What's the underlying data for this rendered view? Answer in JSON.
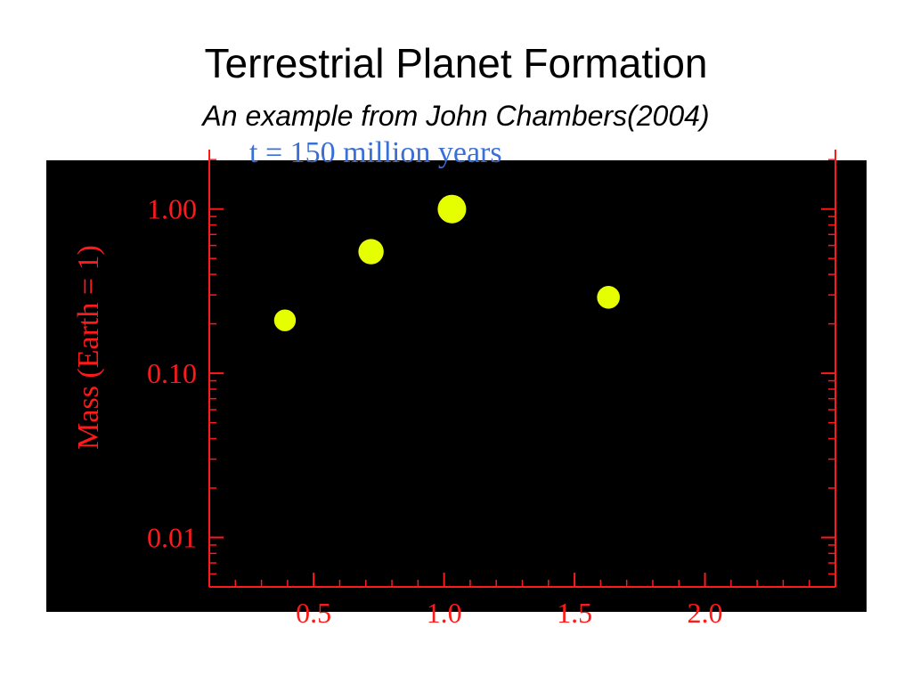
{
  "slide": {
    "title": "Terrestrial Planet Formation",
    "subtitle": "An example from John Chambers(2004)"
  },
  "chart_data": {
    "type": "scatter",
    "title": "t = 150 million years",
    "xlabel": "",
    "ylabel": "Mass (Earth = 1)",
    "yscale": "log",
    "xlim": [
      0.1,
      2.5
    ],
    "ylim": [
      0.005,
      2.3
    ],
    "x_ticks": [
      0.5,
      1.0,
      1.5,
      2.0
    ],
    "x_tick_labels": [
      "0.5",
      "1.0",
      "1.5",
      "2.0"
    ],
    "y_ticks": [
      0.01,
      0.1,
      1.0
    ],
    "y_tick_labels": [
      "0.01",
      "0.10",
      "1.00"
    ],
    "points": [
      {
        "x": 0.39,
        "y": 0.21
      },
      {
        "x": 0.72,
        "y": 0.55
      },
      {
        "x": 1.03,
        "y": 1.0
      },
      {
        "x": 1.63,
        "y": 0.29
      }
    ],
    "colors": {
      "background": "#000000",
      "axes": "#ff1a1a",
      "points": "#e6ff00",
      "title": "#3a6fd8"
    }
  }
}
